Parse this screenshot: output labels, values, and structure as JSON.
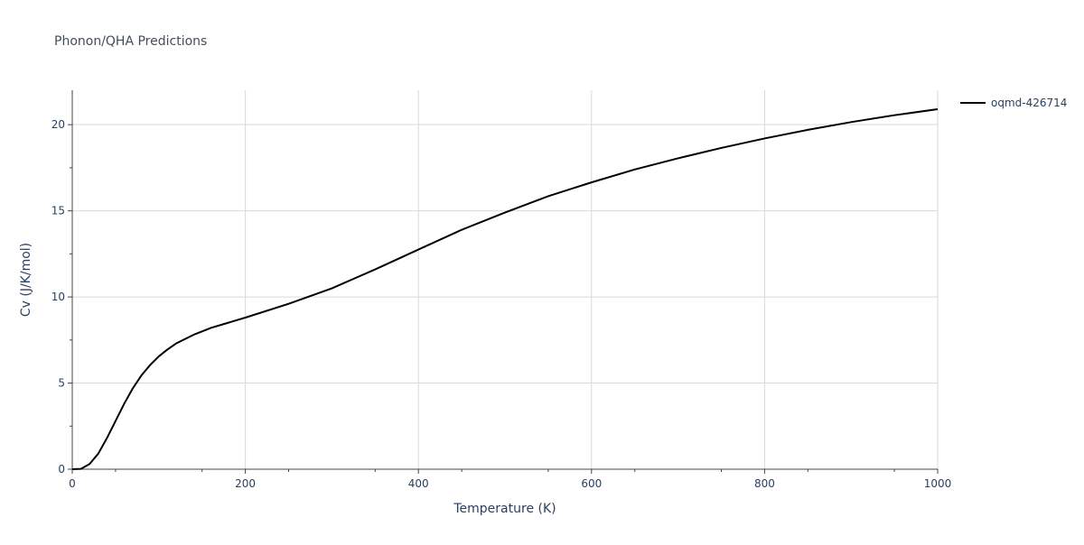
{
  "chart_data": {
    "type": "line",
    "title": "Phonon/QHA Predictions",
    "xlabel": "Temperature (K)",
    "ylabel": "Cv (J/K/mol)",
    "xlim": [
      0,
      1000
    ],
    "ylim": [
      0,
      22
    ],
    "x_ticks": [
      0,
      200,
      400,
      600,
      800,
      1000
    ],
    "y_ticks": [
      0,
      5,
      10,
      15,
      20
    ],
    "grid": true,
    "legend_position": "top-right, outside plot",
    "series": [
      {
        "name": "oqmd-426714",
        "color": "#000000",
        "x": [
          0,
          10,
          20,
          30,
          40,
          50,
          60,
          70,
          80,
          90,
          100,
          110,
          120,
          130,
          140,
          150,
          160,
          180,
          200,
          250,
          300,
          350,
          400,
          450,
          500,
          550,
          600,
          650,
          700,
          750,
          800,
          850,
          900,
          950,
          1000
        ],
        "y": [
          0,
          0.02,
          0.3,
          0.9,
          1.8,
          2.8,
          3.8,
          4.7,
          5.45,
          6.05,
          6.55,
          6.95,
          7.3,
          7.55,
          7.8,
          8.0,
          8.2,
          8.5,
          8.8,
          9.6,
          10.5,
          11.6,
          12.75,
          13.9,
          14.9,
          15.85,
          16.65,
          17.4,
          18.05,
          18.65,
          19.2,
          19.7,
          20.15,
          20.55,
          20.9
        ]
      }
    ]
  }
}
